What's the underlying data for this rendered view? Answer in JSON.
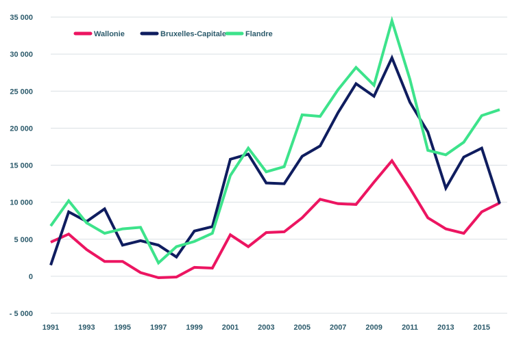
{
  "chart_data": {
    "type": "line",
    "x": [
      1991,
      1992,
      1993,
      1994,
      1995,
      1996,
      1997,
      1998,
      1999,
      2000,
      2001,
      2002,
      2003,
      2004,
      2005,
      2006,
      2007,
      2008,
      2009,
      2010,
      2011,
      2012,
      2013,
      2014,
      2015,
      2016
    ],
    "xticks": [
      "1991",
      "1993",
      "1995",
      "1997",
      "1999",
      "2001",
      "2003",
      "2005",
      "2007",
      "2009",
      "2011",
      "2013",
      "2015"
    ],
    "xtick_values": [
      1991,
      1993,
      1995,
      1997,
      1999,
      2001,
      2003,
      2005,
      2007,
      2009,
      2011,
      2013,
      2015
    ],
    "yticks": [
      "35 000",
      "30 000",
      "25 000",
      "20 000",
      "15 000",
      "10 000",
      "5 000",
      "0",
      "- 5 000"
    ],
    "ytick_values": [
      35000,
      30000,
      25000,
      20000,
      15000,
      10000,
      5000,
      0,
      -5000
    ],
    "ylim": [
      -5000,
      35000
    ],
    "xlim": [
      1991,
      2016
    ],
    "grid": true,
    "legend_position": "top-left",
    "title": "",
    "xlabel": "",
    "ylabel": "",
    "series": [
      {
        "name": "Wallonie",
        "color": "#ec1561",
        "values": [
          4600,
          5700,
          3600,
          2000,
          2000,
          500,
          -200,
          -100,
          1200,
          1100,
          5600,
          4000,
          5900,
          6000,
          7900,
          10400,
          9800,
          9700,
          12700,
          15600,
          11900,
          7900,
          6400,
          5800,
          8700,
          9900
        ]
      },
      {
        "name": "Bruxelles-Capitale",
        "color": "#0f1d5f",
        "values": [
          1500,
          8700,
          7400,
          9100,
          4200,
          4800,
          4200,
          2600,
          6100,
          6700,
          15800,
          16500,
          12600,
          12500,
          16200,
          17600,
          22100,
          26000,
          24300,
          29500,
          23500,
          19500,
          11900,
          16100,
          17300,
          9800
        ]
      },
      {
        "name": "Flandre",
        "color": "#3de38b",
        "values": [
          6800,
          10200,
          7200,
          5800,
          6400,
          6600,
          1800,
          4000,
          4700,
          5800,
          13600,
          17300,
          14100,
          14800,
          21800,
          21600,
          25200,
          28200,
          25800,
          34500,
          26600,
          17000,
          16400,
          18100,
          21700,
          22500
        ]
      }
    ]
  }
}
